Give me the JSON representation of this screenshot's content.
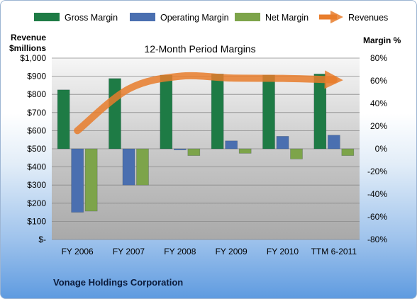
{
  "chart_data": {
    "type": "bar",
    "title": "12-Month Period Margins",
    "categories": [
      "FY 2006",
      "FY 2007",
      "FY 2008",
      "FY 2009",
      "FY 2010",
      "TTM 6-2011"
    ],
    "left_axis": {
      "label_line1": "Revenue",
      "label_line2": "$millions",
      "range": [
        0,
        1000
      ],
      "ticks": [
        {
          "v": 0,
          "t": "$-"
        },
        {
          "v": 100,
          "t": "$100"
        },
        {
          "v": 200,
          "t": "$200"
        },
        {
          "v": 300,
          "t": "$300"
        },
        {
          "v": 400,
          "t": "$400"
        },
        {
          "v": 500,
          "t": "$500"
        },
        {
          "v": 600,
          "t": "$600"
        },
        {
          "v": 700,
          "t": "$700"
        },
        {
          "v": 800,
          "t": "$800"
        },
        {
          "v": 900,
          "t": "$900"
        },
        {
          "v": 1000,
          "t": "$1,000"
        }
      ]
    },
    "right_axis": {
      "label": "Margin %",
      "range": [
        -80,
        80
      ],
      "ticks": [
        {
          "v": 80,
          "t": "80%"
        },
        {
          "v": 60,
          "t": "60%"
        },
        {
          "v": 40,
          "t": "40%"
        },
        {
          "v": 20,
          "t": "20%"
        },
        {
          "v": 0,
          "t": "0%"
        },
        {
          "v": -20,
          "t": "-20%"
        },
        {
          "v": -40,
          "t": "-40%"
        },
        {
          "v": -60,
          "t": "-60%"
        },
        {
          "v": -80,
          "t": "-80%"
        }
      ]
    },
    "series": [
      {
        "name": "Gross Margin",
        "axis": "right",
        "color": "#1e7b45",
        "values": [
          52,
          62,
          65,
          66,
          65,
          66
        ]
      },
      {
        "name": "Operating Margin",
        "axis": "right",
        "color": "#4a6fb0",
        "values": [
          -56,
          -32,
          -1,
          7,
          11,
          12
        ]
      },
      {
        "name": "Net Margin",
        "axis": "right",
        "color": "#7da44a",
        "values": [
          -55,
          -32,
          -6,
          -4,
          -9,
          -6
        ]
      },
      {
        "name": "Revenues",
        "axis": "left",
        "color": "#e87d2c",
        "type": "line",
        "values": [
          600,
          830,
          900,
          890,
          888,
          880
        ]
      }
    ],
    "grid": true,
    "legend": "top"
  },
  "footer": {
    "company": "Vonage Holdings Corporation"
  }
}
